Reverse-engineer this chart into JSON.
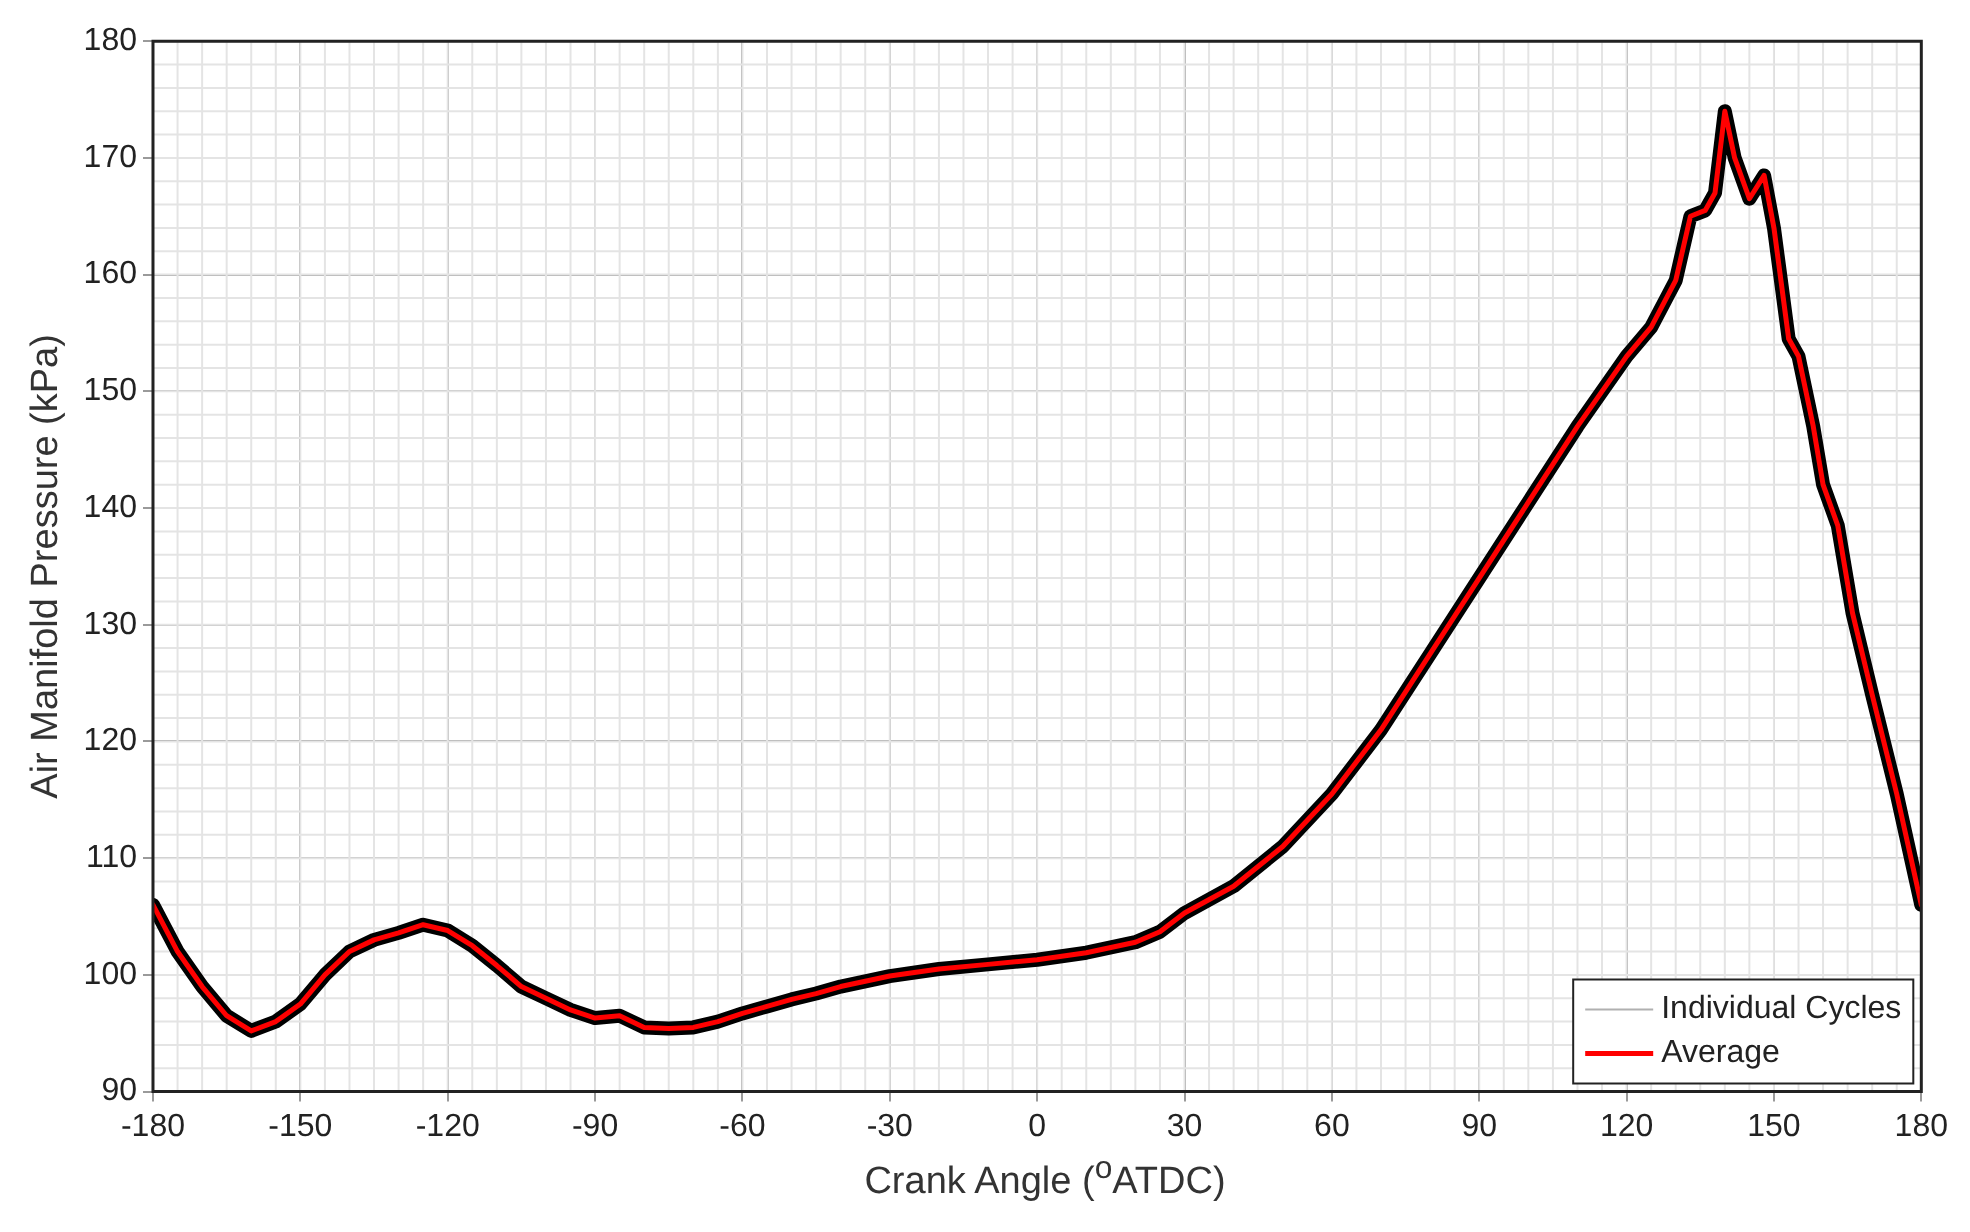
{
  "chart_data": {
    "type": "line",
    "xlabel": "Crank Angle ($^{o}$ATDC)",
    "ylabel": "Air Manifold Pressure (kPa)",
    "x": [
      -180,
      -175,
      -170,
      -165,
      -160,
      -155,
      -150,
      -145,
      -140,
      -135,
      -130,
      -125,
      -120,
      -115,
      -110,
      -105,
      -100,
      -95,
      -90,
      -85,
      -80,
      -75,
      -70,
      -65,
      -60,
      -55,
      -50,
      -45,
      -40,
      -30,
      -20,
      -10,
      0,
      10,
      20,
      25,
      30,
      40,
      50,
      60,
      70,
      80,
      90,
      100,
      110,
      120,
      125,
      130,
      133,
      136,
      138,
      140,
      142,
      145,
      148,
      150,
      153,
      155,
      158,
      160,
      163,
      166,
      170,
      175,
      180
    ],
    "series": [
      {
        "name": "Individual Cycles",
        "color": "#000000",
        "values": [
          106,
          102,
          99,
          96.5,
          95.2,
          96,
          97.5,
          100,
          102,
          103,
          103.6,
          104.3,
          103.8,
          102.5,
          100.8,
          99,
          98,
          97,
          96.3,
          96.5,
          95.5,
          95.4,
          95.5,
          96,
          96.7,
          97.3,
          97.9,
          98.4,
          99,
          99.9,
          100.5,
          100.9,
          101.3,
          101.9,
          102.8,
          103.7,
          105.3,
          107.6,
          111,
          115.5,
          121,
          127.5,
          134,
          140.5,
          147,
          153,
          155.5,
          159.5,
          165,
          165.5,
          167,
          174,
          170,
          166.5,
          168.5,
          164,
          154.5,
          153,
          147,
          142,
          138.5,
          131,
          124,
          115.5,
          106
        ]
      },
      {
        "name": "Average",
        "color": "#ff0000",
        "values": [
          106,
          102,
          99,
          96.5,
          95.2,
          96,
          97.5,
          100,
          102,
          103,
          103.6,
          104.3,
          103.8,
          102.5,
          100.8,
          99,
          98,
          97,
          96.3,
          96.5,
          95.5,
          95.4,
          95.5,
          96,
          96.7,
          97.3,
          97.9,
          98.4,
          99,
          99.9,
          100.5,
          100.9,
          101.3,
          101.9,
          102.8,
          103.7,
          105.3,
          107.6,
          111,
          115.5,
          121,
          127.5,
          134,
          140.5,
          147,
          153,
          155.5,
          159.5,
          165,
          165.5,
          167,
          174,
          170,
          166.5,
          168.5,
          164,
          154.5,
          153,
          147,
          142,
          138.5,
          131,
          124,
          115.5,
          106
        ]
      }
    ],
    "xlim": [
      -180,
      180
    ],
    "xticks": [
      -180,
      -150,
      -120,
      -90,
      -60,
      -30,
      0,
      30,
      60,
      90,
      120,
      150,
      180
    ],
    "ylim": [
      90,
      180
    ],
    "yticks": [
      90,
      100,
      110,
      120,
      130,
      140,
      150,
      160,
      170,
      180
    ],
    "grid": true,
    "legend": "bottom right",
    "marker": "none",
    "line_style": "solid"
  }
}
